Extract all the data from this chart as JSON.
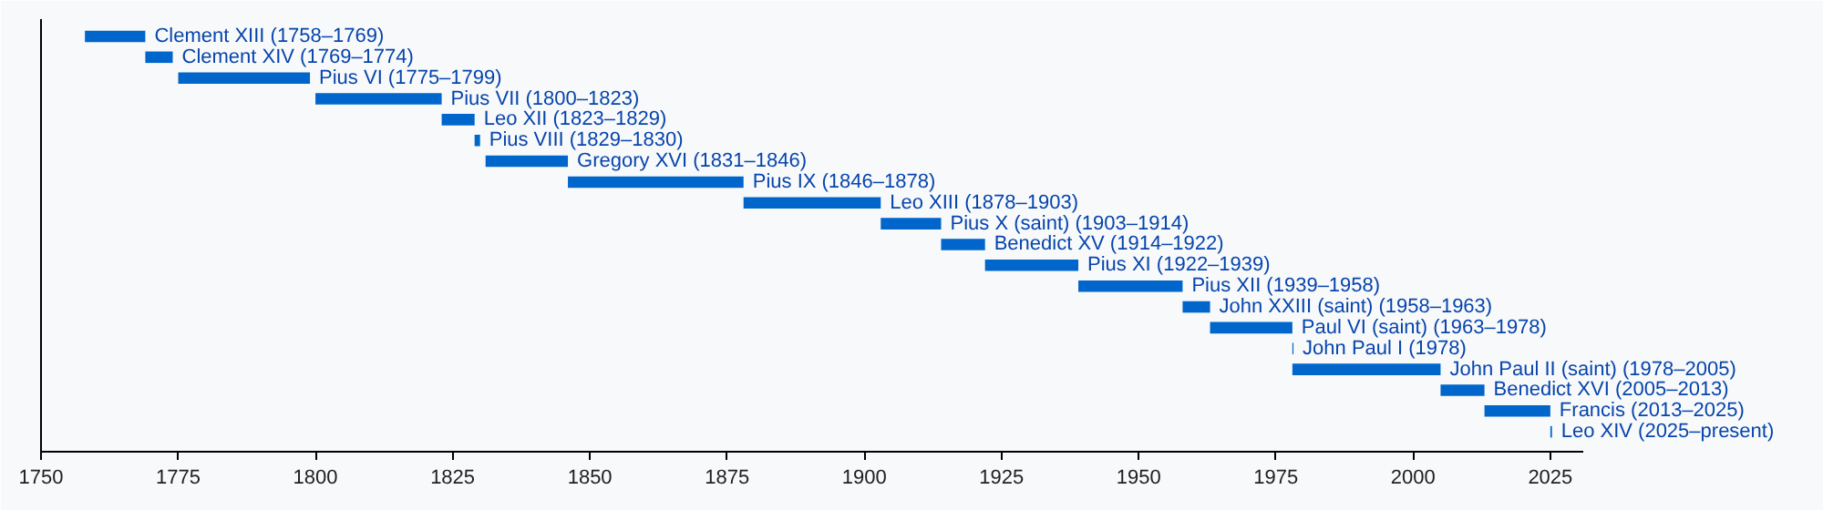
{
  "chart_data": {
    "type": "bar",
    "orientation": "horizontal",
    "color": "#0066cc",
    "categories": [
      "Clement XIII (1758–1769)",
      "Clement XIV (1769–1774)",
      "Pius VI (1775–1799)",
      "Pius VII (1800–1823)",
      "Leo XII (1823–1829)",
      "Pius VIII (1829–1830)",
      "Gregory XVI (1831–1846)",
      "Pius IX (1846–1878)",
      "Leo XIII (1878–1903)",
      "Pius X (saint) (1903–1914)",
      "Benedict XV (1914–1922)",
      "Pius XI (1922–1939)",
      "Pius XII (1939–1958)",
      "John XXIII (saint) (1958–1963)",
      "Paul VI (saint) (1963–1978)",
      "John Paul I (1978)",
      "John Paul II (saint) (1978–2005)",
      "Benedict XVI (2005–2013)",
      "Francis (2013–2025)",
      "Leo XIV (2025–present)"
    ],
    "base": [
      1758,
      1769,
      1775,
      1800,
      1823,
      1829,
      1831,
      1846,
      1878,
      1903,
      1914,
      1922,
      1939,
      1958,
      1963,
      1978,
      1978,
      2005,
      2013,
      2025
    ],
    "values": [
      11,
      5,
      24,
      23,
      6,
      1,
      15,
      32,
      25,
      11,
      8,
      17,
      19,
      5,
      15,
      0.2,
      27,
      8,
      12,
      0.3
    ],
    "xlim": [
      1750,
      2031
    ],
    "xticks": [
      1750,
      1775,
      1800,
      1825,
      1850,
      1875,
      1900,
      1925,
      1950,
      1975,
      2000,
      2025
    ],
    "tick_labels": "x",
    "grid": false
  }
}
